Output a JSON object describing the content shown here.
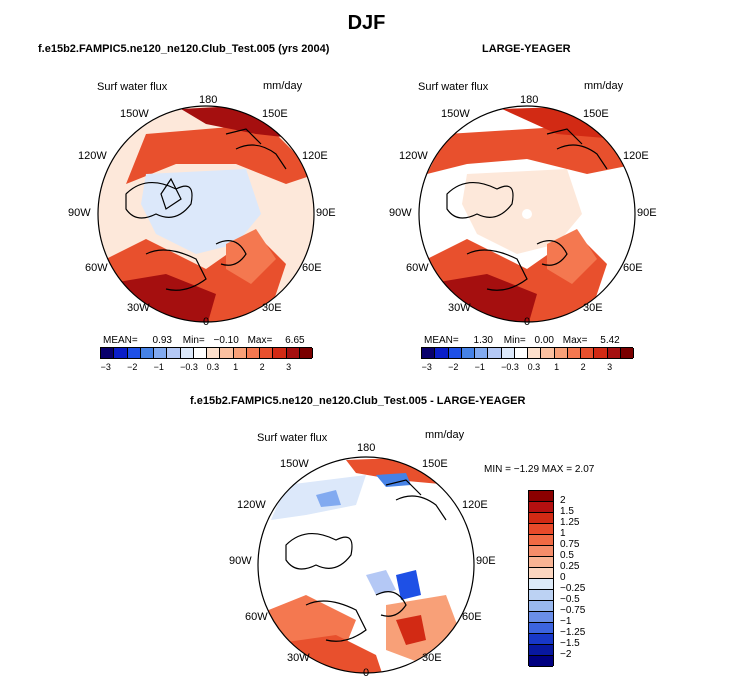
{
  "title": "DJF",
  "panel1": {
    "header": "f.e15b2.FAMPIC5.ne120_ne120.Club_Test.005 (yrs 2004)",
    "var_label": "Surf water flux",
    "units": "mm/day",
    "stats": {
      "mean_label": "MEAN=",
      "mean": "0.93",
      "min_label": "Min=",
      "min": "−0.10",
      "max_label": "Max=",
      "max": "6.65"
    }
  },
  "panel2": {
    "header": "LARGE-YEAGER",
    "var_label": "Surf water flux",
    "units": "mm/day",
    "stats": {
      "mean_label": "MEAN=",
      "mean": "1.30",
      "min_label": "Min=",
      "min": "0.00",
      "max_label": "Max=",
      "max": "5.42"
    }
  },
  "panel3": {
    "header": "f.e15b2.FAMPIC5.ne120_ne120.Club_Test.005 - LARGE-YEAGER",
    "var_label": "Surf water flux",
    "units": "mm/day",
    "minmax": "MIN = −1.29 MAX =   2.07"
  },
  "lon_labels": {
    "top": "180",
    "bottom": "0",
    "l1": "150W",
    "l2": "120W",
    "l3": "90W",
    "l4": "60W",
    "l5": "30W",
    "r1": "150E",
    "r2": "120E",
    "r3": "90E",
    "r4": "60E",
    "r5": "30E"
  },
  "hbar_ticks": [
    "−3",
    "−2",
    "−1",
    "−0.3",
    "0.3",
    "1",
    "2",
    "3"
  ],
  "hbar_colors": [
    "#08006b",
    "#0a1ec8",
    "#1e50e6",
    "#4682e6",
    "#82aaf0",
    "#b4c8f5",
    "#dce8fa",
    "#ffffff",
    "#fde0cc",
    "#fbc0a0",
    "#f8a078",
    "#f47850",
    "#e8502d",
    "#d22a14",
    "#a50f0f",
    "#7a0000"
  ],
  "vbar_labels": [
    "2",
    "1.5",
    "1.25",
    "1",
    "0.75",
    "0.5",
    "0.25",
    "0",
    "−0.25",
    "−0.5",
    "−0.75",
    "−1",
    "−1.25",
    "−1.5",
    "−2"
  ],
  "vbar_colors": [
    "#8b0000",
    "#b41010",
    "#d22a14",
    "#e84a2a",
    "#f06a44",
    "#f58d6a",
    "#f9b494",
    "#fcd6c0",
    "#ddeaf8",
    "#bcd2f3",
    "#99b8ee",
    "#6a8ee8",
    "#3c64e0",
    "#1838c8",
    "#0818a0",
    "#000080"
  ]
}
